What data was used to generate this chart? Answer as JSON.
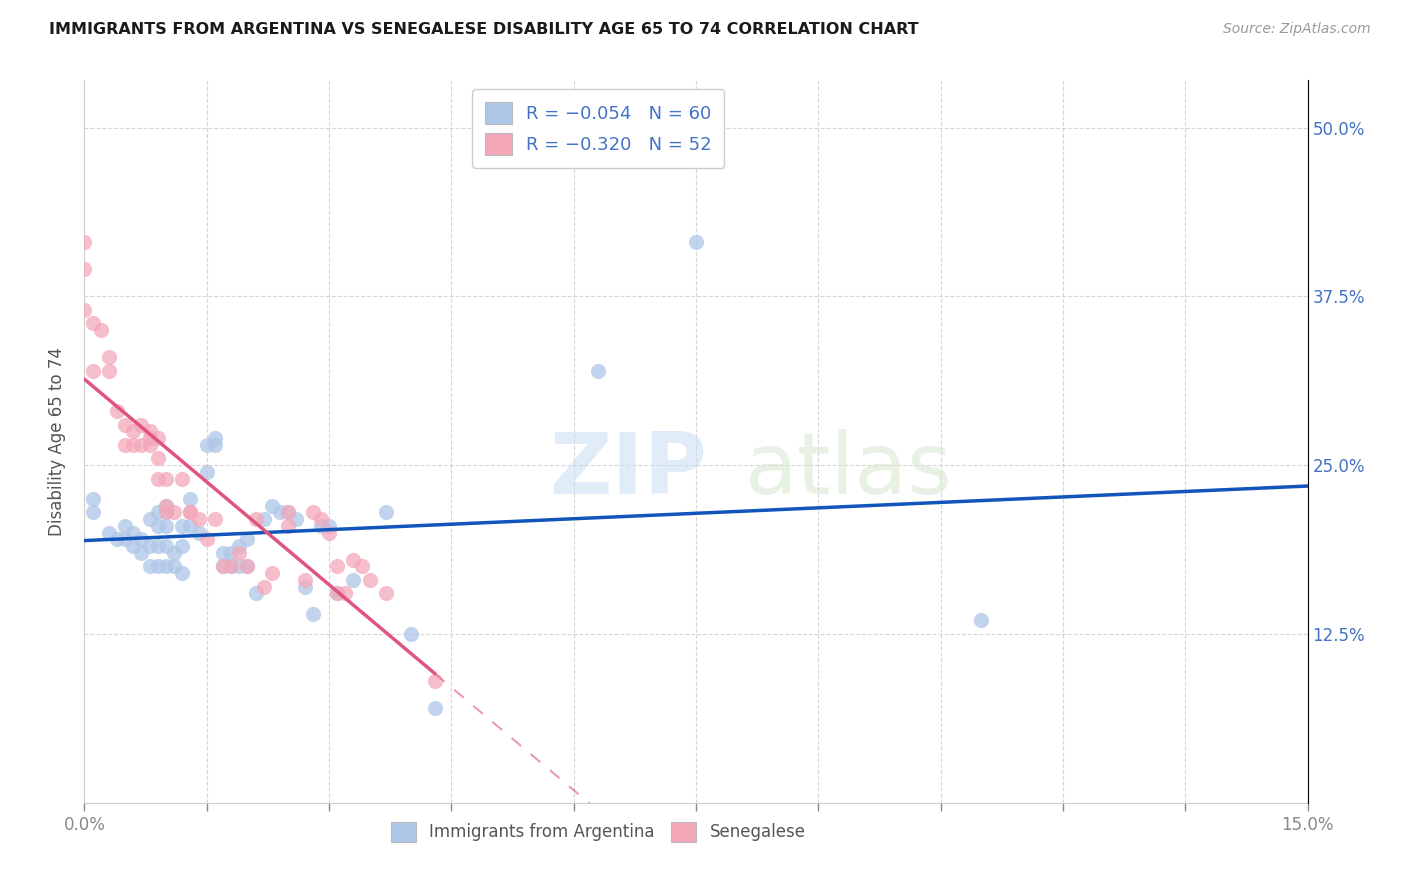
{
  "title": "IMMIGRANTS FROM ARGENTINA VS SENEGALESE DISABILITY AGE 65 TO 74 CORRELATION CHART",
  "source": "Source: ZipAtlas.com",
  "ylabel": "Disability Age 65 to 74",
  "yticks": [
    "50.0%",
    "37.5%",
    "25.0%",
    "12.5%"
  ],
  "ytick_vals": [
    0.5,
    0.375,
    0.25,
    0.125
  ],
  "xlim": [
    0.0,
    0.15
  ],
  "ylim": [
    0.0,
    0.535
  ],
  "legend_label_1": "R = −0.054   N = 60",
  "legend_label_2": "R = −0.320   N = 52",
  "legend_bottom_1": "Immigrants from Argentina",
  "legend_bottom_2": "Senegalese",
  "color_argentina": "#aec6e8",
  "color_senegalese": "#f4a7b9",
  "color_argentina_line": "#1155bb",
  "color_senegalese_line": "#e05580",
  "watermark_zip": "ZIP",
  "watermark_atlas": "atlas",
  "argentina_x": [
    0.001,
    0.001,
    0.003,
    0.004,
    0.005,
    0.005,
    0.006,
    0.006,
    0.007,
    0.007,
    0.008,
    0.008,
    0.008,
    0.009,
    0.009,
    0.009,
    0.009,
    0.01,
    0.01,
    0.01,
    0.01,
    0.01,
    0.011,
    0.011,
    0.012,
    0.012,
    0.012,
    0.013,
    0.013,
    0.014,
    0.015,
    0.015,
    0.016,
    0.016,
    0.017,
    0.017,
    0.018,
    0.018,
    0.019,
    0.019,
    0.02,
    0.02,
    0.021,
    0.022,
    0.023,
    0.024,
    0.025,
    0.026,
    0.027,
    0.028,
    0.029,
    0.03,
    0.031,
    0.033,
    0.037,
    0.04,
    0.043,
    0.063,
    0.075,
    0.11
  ],
  "argentina_y": [
    0.215,
    0.225,
    0.2,
    0.195,
    0.195,
    0.205,
    0.19,
    0.2,
    0.185,
    0.195,
    0.175,
    0.19,
    0.21,
    0.175,
    0.19,
    0.205,
    0.215,
    0.175,
    0.19,
    0.205,
    0.215,
    0.22,
    0.175,
    0.185,
    0.17,
    0.19,
    0.205,
    0.205,
    0.225,
    0.2,
    0.245,
    0.265,
    0.265,
    0.27,
    0.175,
    0.185,
    0.175,
    0.185,
    0.175,
    0.19,
    0.175,
    0.195,
    0.155,
    0.21,
    0.22,
    0.215,
    0.215,
    0.21,
    0.16,
    0.14,
    0.205,
    0.205,
    0.155,
    0.165,
    0.215,
    0.125,
    0.07,
    0.32,
    0.415,
    0.135
  ],
  "senegalese_x": [
    0.0,
    0.0,
    0.0,
    0.001,
    0.001,
    0.002,
    0.003,
    0.003,
    0.004,
    0.005,
    0.005,
    0.006,
    0.006,
    0.007,
    0.007,
    0.008,
    0.008,
    0.008,
    0.009,
    0.009,
    0.009,
    0.01,
    0.01,
    0.01,
    0.011,
    0.012,
    0.013,
    0.013,
    0.014,
    0.015,
    0.016,
    0.017,
    0.018,
    0.019,
    0.02,
    0.021,
    0.022,
    0.023,
    0.025,
    0.025,
    0.027,
    0.028,
    0.029,
    0.03,
    0.031,
    0.031,
    0.032,
    0.033,
    0.034,
    0.035,
    0.037,
    0.043
  ],
  "senegalese_y": [
    0.415,
    0.395,
    0.365,
    0.355,
    0.32,
    0.35,
    0.33,
    0.32,
    0.29,
    0.28,
    0.265,
    0.265,
    0.275,
    0.265,
    0.28,
    0.265,
    0.27,
    0.275,
    0.24,
    0.255,
    0.27,
    0.24,
    0.215,
    0.22,
    0.215,
    0.24,
    0.215,
    0.215,
    0.21,
    0.195,
    0.21,
    0.175,
    0.175,
    0.185,
    0.175,
    0.21,
    0.16,
    0.17,
    0.205,
    0.215,
    0.165,
    0.215,
    0.21,
    0.2,
    0.155,
    0.175,
    0.155,
    0.18,
    0.175,
    0.165,
    0.155,
    0.09
  ],
  "sen_line_solid_end": 0.043,
  "sen_line_dash_end": 0.15,
  "arg_line_end": 0.15
}
